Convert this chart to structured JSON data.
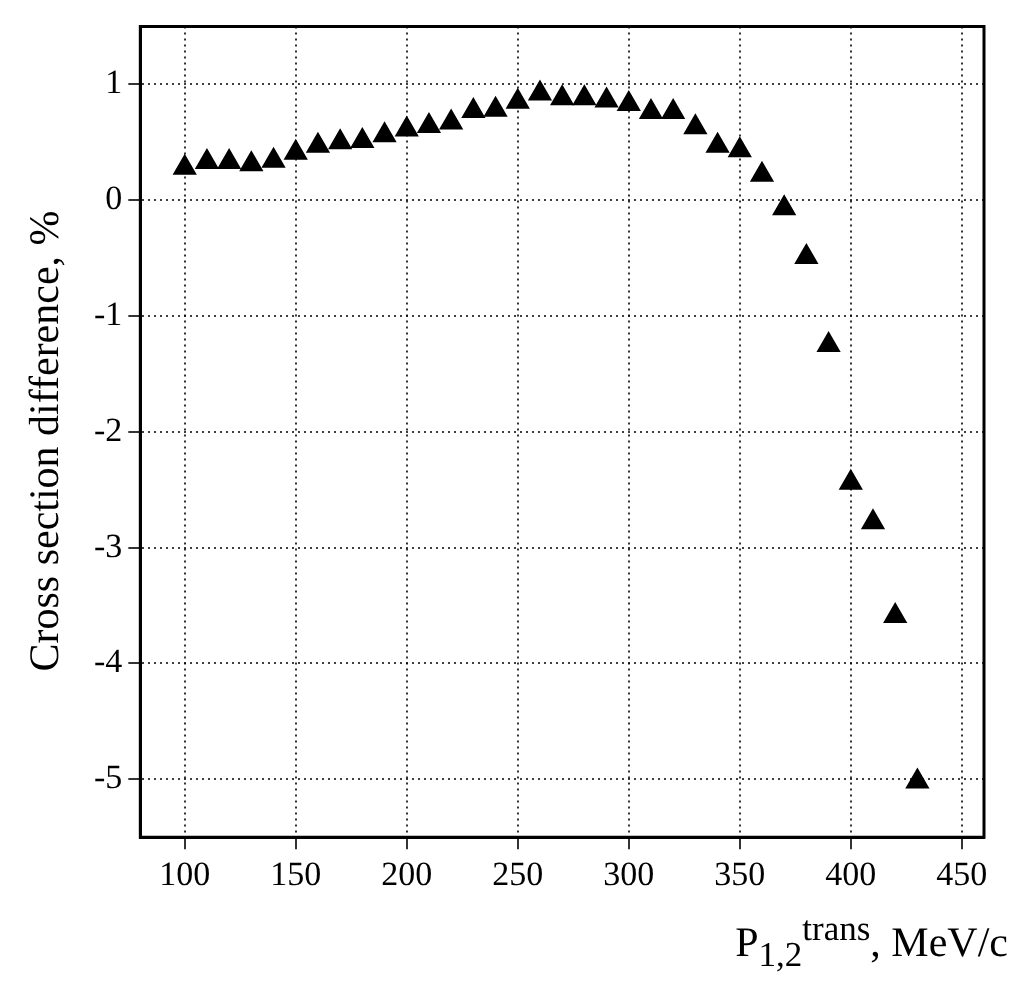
{
  "chart_data": {
    "type": "scatter",
    "xlabel": "P$_{1,2}$$^{trans}$, MeV/c",
    "ylabel": "Cross section difference, %",
    "x": [
      100,
      110,
      120,
      130,
      140,
      150,
      160,
      170,
      180,
      190,
      200,
      210,
      220,
      230,
      240,
      250,
      260,
      270,
      280,
      290,
      300,
      310,
      320,
      330,
      340,
      350,
      360,
      370,
      380,
      390,
      400,
      410,
      420,
      430
    ],
    "series": [
      {
        "color": "#000000",
        "values": [
          0.28,
          0.33,
          0.33,
          0.31,
          0.34,
          0.41,
          0.47,
          0.5,
          0.51,
          0.56,
          0.61,
          0.64,
          0.67,
          0.77,
          0.78,
          0.85,
          0.92,
          0.88,
          0.88,
          0.86,
          0.83,
          0.76,
          0.76,
          0.63,
          0.47,
          0.43,
          0.22,
          -0.07,
          -0.49,
          -1.25,
          -2.44,
          -2.78,
          -3.59,
          -5.02
        ]
      }
    ],
    "xlim": [
      80,
      460
    ],
    "ylim": [
      -5.5,
      1.5
    ],
    "xticks": [
      100,
      150,
      200,
      250,
      300,
      350,
      400,
      450
    ],
    "yticks": [
      -5,
      -4,
      -3,
      -2,
      -1,
      0,
      1
    ],
    "grid": true,
    "marker": "triangle",
    "legend": false
  }
}
